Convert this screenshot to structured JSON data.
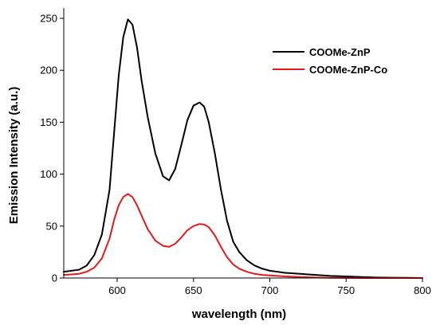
{
  "chart_data": {
    "type": "line",
    "title": "",
    "xlabel": "wavelength (nm)",
    "ylabel": "Emission Intensity (a.u.)",
    "xlim": [
      565,
      800
    ],
    "ylim": [
      0,
      260
    ],
    "x_ticks": [
      600,
      650,
      700,
      750,
      800
    ],
    "y_ticks": [
      0,
      50,
      100,
      150,
      200,
      250
    ],
    "grid": false,
    "legend_position": "top-right",
    "series": [
      {
        "name": "COOMe-ZnP",
        "color": "#000000",
        "x": [
          565,
          570,
          575,
          580,
          585,
          590,
          595,
          598,
          601,
          604,
          607,
          610,
          613,
          616,
          620,
          625,
          630,
          634,
          638,
          642,
          646,
          650,
          654,
          657,
          660,
          664,
          668,
          672,
          676,
          680,
          685,
          690,
          695,
          700,
          710,
          720,
          730,
          740,
          750,
          760,
          770,
          780,
          790,
          800
        ],
        "y": [
          6,
          7,
          8,
          12,
          22,
          42,
          85,
          140,
          195,
          232,
          249,
          244,
          222,
          190,
          155,
          120,
          98,
          94,
          105,
          128,
          152,
          166,
          169,
          165,
          150,
          120,
          85,
          55,
          35,
          25,
          17,
          12,
          9,
          7,
          5,
          4,
          3,
          2,
          1.5,
          1,
          0.5,
          0.3,
          0.2,
          0
        ]
      },
      {
        "name": "COOMe-ZnP-Co",
        "color": "#e31a1c",
        "x": [
          565,
          570,
          575,
          580,
          585,
          590,
          595,
          598,
          601,
          604,
          607,
          610,
          613,
          616,
          620,
          625,
          630,
          634,
          638,
          642,
          646,
          650,
          654,
          657,
          660,
          664,
          668,
          672,
          676,
          680,
          685,
          690,
          695,
          700,
          710,
          720,
          730,
          740,
          750,
          760,
          770,
          780,
          790,
          800
        ],
        "y": [
          3,
          3.5,
          4,
          6,
          10,
          19,
          38,
          56,
          70,
          78,
          81,
          78,
          70,
          60,
          47,
          36,
          31,
          30,
          33,
          39,
          46,
          50,
          52,
          51.5,
          49,
          41,
          30,
          20,
          13,
          9,
          6,
          4,
          3,
          2.5,
          1.5,
          1,
          0.5,
          0.2,
          0.1,
          0,
          0,
          0,
          0,
          0
        ]
      }
    ]
  }
}
